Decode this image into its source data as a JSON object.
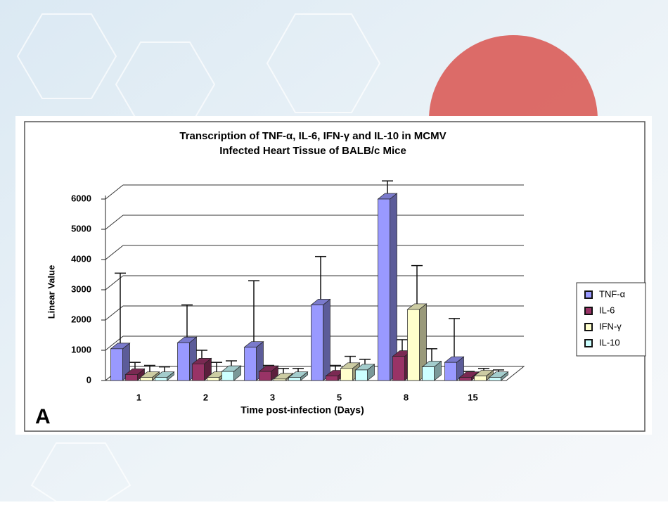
{
  "chart_data": {
    "type": "bar3d",
    "title": [
      "Transcription of TNF-α, IL-6, IFN-γ and IL-10 in MCMV",
      "Infected Heart Tissue of BALB/c Mice"
    ],
    "panel_label": "A",
    "x_label": "Time post-infection (Days)",
    "y_label": "Linear Value",
    "categories": [
      "1",
      "2",
      "3",
      "5",
      "8",
      "15"
    ],
    "series": [
      {
        "name": "TNF-α",
        "color": "#9999ff",
        "values": [
          1050,
          1250,
          1100,
          2500,
          6000,
          600
        ],
        "errors": [
          2500,
          1250,
          2200,
          1600,
          600,
          1450
        ]
      },
      {
        "name": "IL-6",
        "color": "#993366",
        "values": [
          200,
          550,
          300,
          150,
          800,
          100
        ],
        "errors": [
          400,
          450,
          200,
          350,
          550,
          200
        ]
      },
      {
        "name": "IFN-γ",
        "color": "#ffffcc",
        "values": [
          100,
          100,
          50,
          400,
          2350,
          150
        ],
        "errors": [
          400,
          500,
          350,
          400,
          1450,
          250
        ]
      },
      {
        "name": "IL-10",
        "color": "#ccffff",
        "values": [
          100,
          300,
          100,
          350,
          450,
          100
        ],
        "errors": [
          350,
          350,
          300,
          350,
          600,
          250
        ]
      }
    ],
    "ylim": [
      0,
      6000
    ],
    "yticks": [
      0,
      1000,
      2000,
      3000,
      4000,
      5000,
      6000
    ],
    "grid": true,
    "legend": "right"
  }
}
